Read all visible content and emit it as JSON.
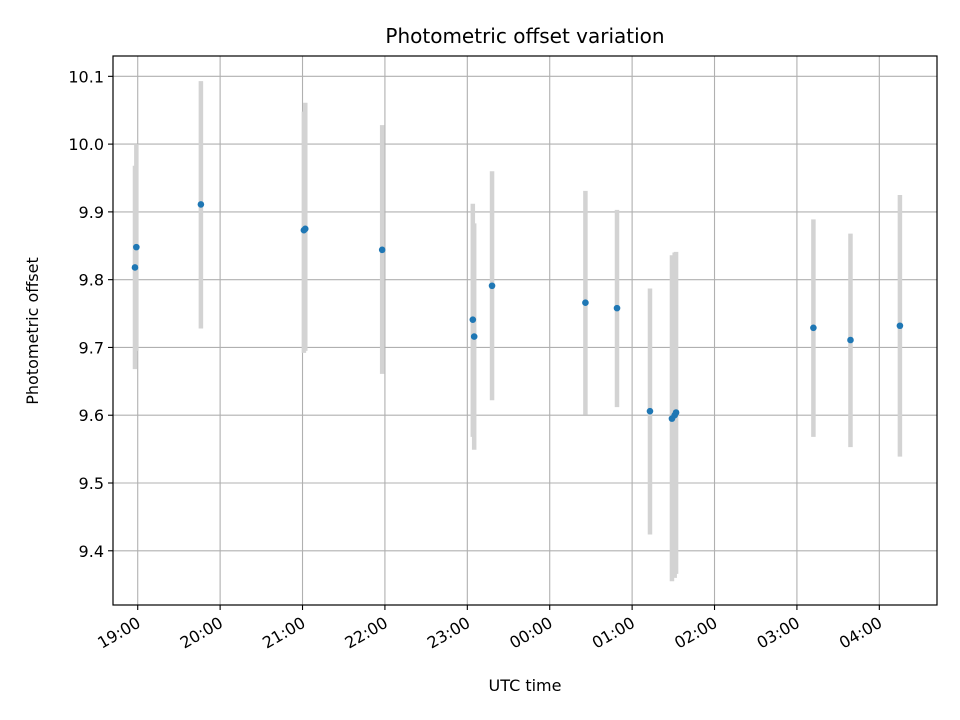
{
  "chart_data": {
    "type": "scatter",
    "title": "Photometric offset variation",
    "xlabel": "UTC time",
    "ylabel": "Photometric offset",
    "grid": true,
    "x_is_time": true,
    "xlim": [
      "18:42",
      "04:42"
    ],
    "ylim": [
      9.32,
      10.13
    ],
    "x_ticks": [
      "19:00",
      "20:00",
      "21:00",
      "22:00",
      "23:00",
      "00:00",
      "01:00",
      "02:00",
      "03:00",
      "04:00"
    ],
    "y_ticks": [
      "9.4",
      "9.5",
      "9.6",
      "9.7",
      "9.8",
      "9.9",
      "10.0",
      "10.1"
    ],
    "marker_color": "#1f77b4",
    "errorbar_color": "#d3d3d3",
    "series": [
      {
        "points": [
          {
            "x": "18:58",
            "y": 9.818,
            "ylow": 9.668,
            "yhigh": 9.968
          },
          {
            "x": "18:59",
            "y": 9.848,
            "ylow": 9.695,
            "yhigh": 10.0
          },
          {
            "x": "19:46",
            "y": 9.911,
            "ylow": 9.728,
            "yhigh": 10.093
          },
          {
            "x": "21:01",
            "y": 9.873,
            "ylow": 9.692,
            "yhigh": 10.048
          },
          {
            "x": "21:02",
            "y": 9.875,
            "ylow": 9.695,
            "yhigh": 10.061
          },
          {
            "x": "21:58",
            "y": 9.844,
            "ylow": 9.661,
            "yhigh": 10.028
          },
          {
            "x": "23:04",
            "y": 9.741,
            "ylow": 9.568,
            "yhigh": 9.912
          },
          {
            "x": "23:05",
            "y": 9.716,
            "ylow": 9.549,
            "yhigh": 9.883
          },
          {
            "x": "23:18",
            "y": 9.791,
            "ylow": 9.622,
            "yhigh": 9.96
          },
          {
            "x": "00:26",
            "y": 9.766,
            "ylow": 9.601,
            "yhigh": 9.931
          },
          {
            "x": "00:49",
            "y": 9.758,
            "ylow": 9.612,
            "yhigh": 9.903
          },
          {
            "x": "01:13",
            "y": 9.606,
            "ylow": 9.424,
            "yhigh": 9.787
          },
          {
            "x": "01:29",
            "y": 9.595,
            "ylow": 9.355,
            "yhigh": 9.836
          },
          {
            "x": "01:31",
            "y": 9.6,
            "ylow": 9.36,
            "yhigh": 9.84
          },
          {
            "x": "01:32",
            "y": 9.604,
            "ylow": 9.366,
            "yhigh": 9.841
          },
          {
            "x": "03:12",
            "y": 9.729,
            "ylow": 9.568,
            "yhigh": 9.889
          },
          {
            "x": "03:39",
            "y": 9.711,
            "ylow": 9.553,
            "yhigh": 9.868
          },
          {
            "x": "04:15",
            "y": 9.732,
            "ylow": 9.539,
            "yhigh": 9.925
          }
        ]
      }
    ]
  }
}
